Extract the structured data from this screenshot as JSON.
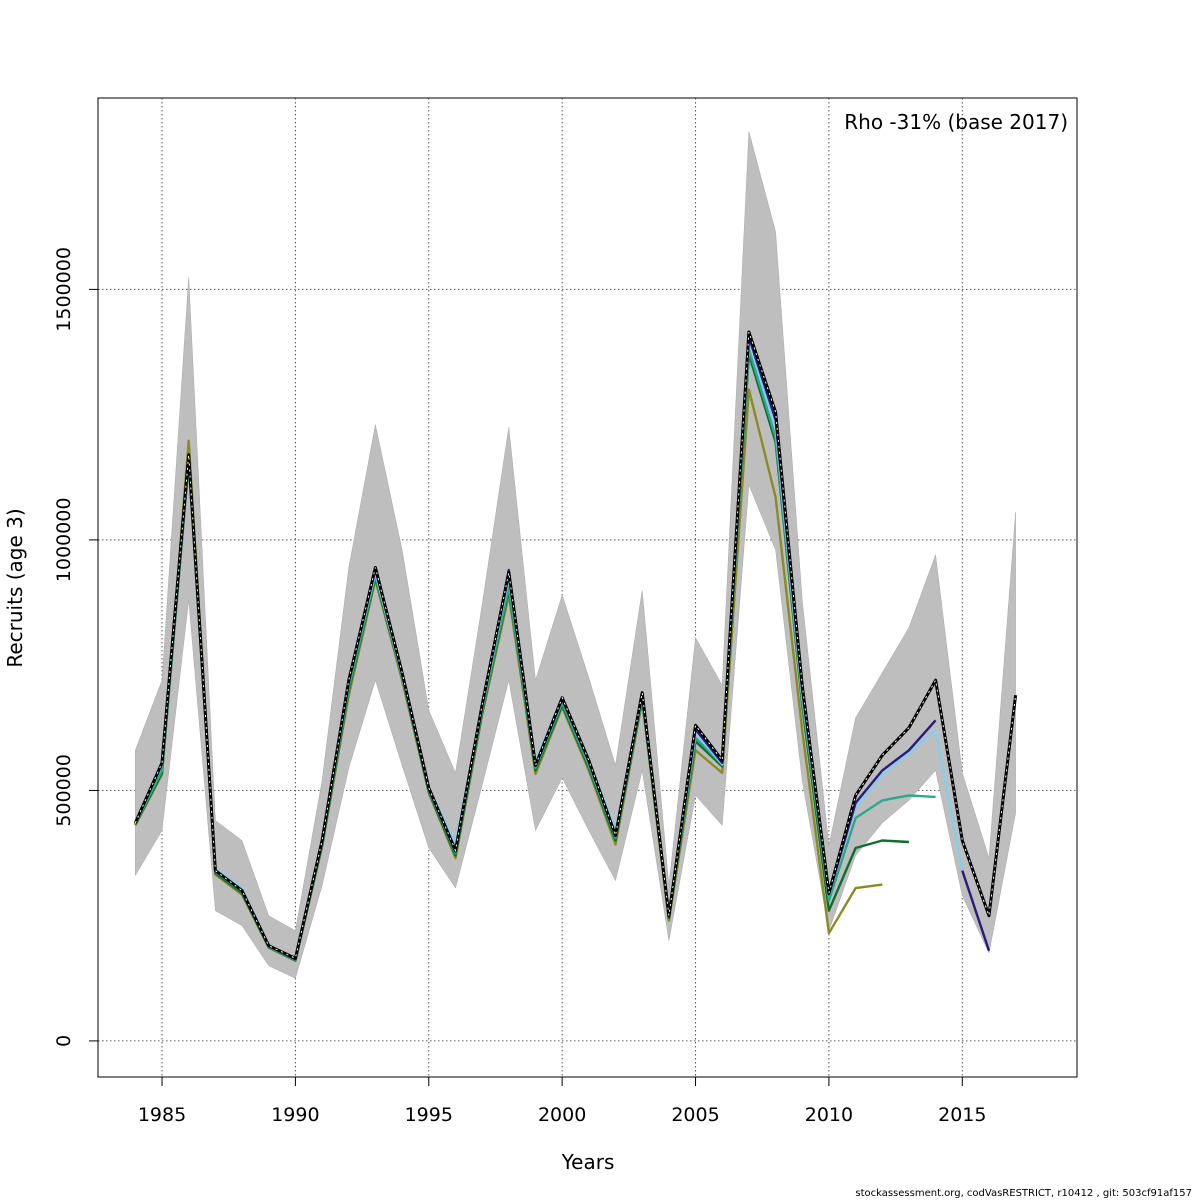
{
  "footer": "stockassessment.org, codVasRESTRICT, r10412 , git: 503cf91af157",
  "chart_data": {
    "type": "line",
    "title": "",
    "xlabel": "Years",
    "ylabel": "Recruits (age 3)",
    "annotation": "Rho -31% (base 2017)",
    "xlim": [
      1982.6,
      2019.3
    ],
    "ylim": [
      -72000,
      1882000
    ],
    "xticks": [
      "1985",
      "1990",
      "1995",
      "2000",
      "2005",
      "2010",
      "2015"
    ],
    "yticks": [
      "0",
      "500000",
      "1000000",
      "1500000"
    ],
    "grid": true,
    "legend": "none",
    "band": {
      "color": "#bebebe",
      "x": [
        1984,
        1985,
        1986,
        1987,
        1988,
        1989,
        1990,
        1991,
        1992,
        1993,
        1994,
        1995,
        1996,
        1997,
        1998,
        1999,
        2000,
        2001,
        2002,
        2003,
        2004,
        2005,
        2006,
        2007,
        2008,
        2009,
        2010,
        2011,
        2012,
        2013,
        2014,
        2015,
        2016,
        2017
      ],
      "upper": [
        580000,
        720000,
        1525000,
        440000,
        400000,
        250000,
        220000,
        520000,
        945000,
        1230000,
        980000,
        660000,
        535000,
        870000,
        1225000,
        720000,
        890000,
        725000,
        550000,
        900000,
        310000,
        805000,
        710000,
        1815000,
        1615000,
        880000,
        390000,
        645000,
        735000,
        825000,
        970000,
        535000,
        365000,
        1055000
      ],
      "lower": [
        330000,
        420000,
        880000,
        260000,
        230000,
        150000,
        125000,
        310000,
        545000,
        720000,
        550000,
        385000,
        305000,
        510000,
        720000,
        420000,
        525000,
        420000,
        320000,
        540000,
        200000,
        490000,
        430000,
        1110000,
        980000,
        520000,
        220000,
        370000,
        435000,
        480000,
        540000,
        290000,
        175000,
        455000
      ]
    },
    "series": [
      {
        "color": "#000000",
        "dashed": true,
        "x": [
          1984,
          1985,
          1986,
          1987,
          1988,
          1989,
          1990,
          1991,
          1992,
          1993,
          1994,
          1995,
          1996,
          1997,
          1998,
          1999,
          2000,
          2001,
          2002,
          2003,
          2004,
          2005,
          2006,
          2007,
          2008,
          2009,
          2010,
          2011,
          2012,
          2013,
          2014,
          2015,
          2016,
          2017
        ],
        "values": [
          435000,
          555000,
          1170000,
          340000,
          300000,
          190000,
          165000,
          400000,
          720000,
          945000,
          735000,
          505000,
          380000,
          670000,
          935000,
          550000,
          685000,
          560000,
          410000,
          695000,
          250000,
          630000,
          560000,
          1415000,
          1255000,
          710000,
          295000,
          490000,
          570000,
          625000,
          720000,
          400000,
          250000,
          690000
        ]
      },
      {
        "color": "#2a1a80",
        "x": [
          1984,
          1985,
          1986,
          1987,
          1988,
          1989,
          1990,
          1991,
          1992,
          1993,
          1994,
          1995,
          1996,
          1997,
          1998,
          1999,
          2000,
          2001,
          2002,
          2003,
          2004,
          2005,
          2006,
          2007,
          2008,
          2009,
          2010,
          2011,
          2012,
          2013,
          2014
        ],
        "values": [
          435000,
          555000,
          1165000,
          340000,
          300000,
          190000,
          163000,
          398000,
          718000,
          942000,
          733000,
          503000,
          378000,
          668000,
          940000,
          550000,
          682000,
          558000,
          410000,
          692000,
          248000,
          622000,
          555000,
          1405000,
          1240000,
          700000,
          293000,
          475000,
          540000,
          580000,
          640000
        ]
      },
      {
        "color": "#2a1a80",
        "x": [
          2015,
          2016
        ],
        "values": [
          340000,
          180000
        ]
      },
      {
        "color": "#87ceeb",
        "x": [
          1984,
          1985,
          1986,
          1987,
          1988,
          1989,
          1990,
          1991,
          1992,
          1993,
          1994,
          1995,
          1996,
          1997,
          1998,
          1999,
          2000,
          2001,
          2002,
          2003,
          2004,
          2005,
          2006,
          2007,
          2008,
          2009,
          2010,
          2011,
          2012,
          2013,
          2014,
          2015
        ],
        "values": [
          435000,
          560000,
          1160000,
          345000,
          305000,
          192000,
          163000,
          400000,
          720000,
          935000,
          730000,
          505000,
          395000,
          665000,
          925000,
          560000,
          686000,
          560000,
          420000,
          688000,
          252000,
          615000,
          552000,
          1395000,
          1225000,
          690000,
          300000,
          465000,
          530000,
          575000,
          620000,
          340000
        ]
      },
      {
        "color": "#2ba88d",
        "x": [
          1984,
          1985,
          1986,
          1987,
          1988,
          1989,
          1990,
          1991,
          1992,
          1993,
          1994,
          1995,
          1996,
          1997,
          1998,
          1999,
          2000,
          2001,
          2002,
          2003,
          2004,
          2005,
          2006,
          2007,
          2008,
          2009,
          2010,
          2011,
          2012,
          2013,
          2014
        ],
        "values": [
          433000,
          540000,
          1160000,
          338000,
          298000,
          188000,
          162000,
          395000,
          705000,
          930000,
          728000,
          500000,
          375000,
          660000,
          905000,
          545000,
          675000,
          550000,
          405000,
          685000,
          250000,
          605000,
          552000,
          1380000,
          1205000,
          680000,
          280000,
          445000,
          480000,
          490000,
          487000
        ]
      },
      {
        "color": "#0e6e2e",
        "x": [
          1984,
          1985,
          1986,
          1987,
          1988,
          1989,
          1990,
          1991,
          1992,
          1993,
          1994,
          1995,
          1996,
          1997,
          1998,
          1999,
          2000,
          2001,
          2002,
          2003,
          2004,
          2005,
          2006,
          2007,
          2008,
          2009,
          2010,
          2011,
          2012,
          2013
        ],
        "values": [
          432000,
          535000,
          1155000,
          335000,
          295000,
          187000,
          161000,
          390000,
          700000,
          925000,
          725000,
          497000,
          370000,
          655000,
          900000,
          540000,
          670000,
          545000,
          400000,
          682000,
          245000,
          598000,
          548000,
          1370000,
          1195000,
          670000,
          260000,
          385000,
          400000,
          397000
        ]
      },
      {
        "color": "#8b8b23",
        "x": [
          1984,
          1985,
          1986,
          1987,
          1988,
          1989,
          1990,
          1991,
          1992,
          1993,
          1994,
          1995,
          1996,
          1997,
          1998,
          1999,
          2000,
          2001,
          2002,
          2003,
          2004,
          2005,
          2006,
          2007,
          2008,
          2009,
          2010,
          2011,
          2012
        ],
        "values": [
          430000,
          532000,
          1198000,
          332000,
          292000,
          186000,
          160000,
          388000,
          690000,
          920000,
          720000,
          495000,
          365000,
          650000,
          890000,
          533000,
          666000,
          540000,
          392000,
          678000,
          240000,
          580000,
          535000,
          1300000,
          1085000,
          620000,
          215000,
          305000,
          312000
        ]
      }
    ]
  }
}
